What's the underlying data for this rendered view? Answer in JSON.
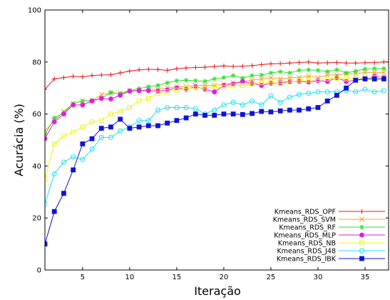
{
  "chart_data": {
    "type": "line",
    "title": "",
    "xlabel": "Iteração",
    "ylabel": "Acurácia (%)",
    "xlim": [
      1,
      37.5
    ],
    "ylim": [
      0,
      100
    ],
    "xticks": [
      5,
      10,
      15,
      20,
      25,
      30,
      35
    ],
    "yticks": [
      0,
      20,
      40,
      60,
      80,
      100
    ],
    "grid": false,
    "legend_position": "bottom-right",
    "x": [
      1,
      2,
      3,
      4,
      5,
      6,
      7,
      8,
      9,
      10,
      11,
      12,
      13,
      14,
      15,
      16,
      17,
      18,
      19,
      20,
      21,
      22,
      23,
      24,
      25,
      26,
      27,
      28,
      29,
      30,
      31,
      32,
      33,
      34,
      35,
      36,
      37
    ],
    "series": [
      {
        "name": "Kmeans_RDS_OPF",
        "color": "#e8171a",
        "marker": "plus",
        "values": [
          69.5,
          73.5,
          74,
          74.5,
          74.3,
          74.8,
          75,
          75.1,
          75.8,
          76.5,
          77,
          77.2,
          77.1,
          76.8,
          77.4,
          77.7,
          77.9,
          78,
          78.3,
          78.5,
          78.3,
          78.4,
          78.6,
          79,
          79.3,
          79.4,
          79.6,
          79.8,
          80,
          79.6,
          79.7,
          79.8,
          79.6,
          79.6,
          79.7,
          79.8,
          80
        ]
      },
      {
        "name": "Kmeans_RDS_SVM",
        "color": "#f7a030",
        "marker": "x",
        "values": [
          53.5,
          57.5,
          61,
          64,
          65,
          65,
          67.5,
          68,
          68,
          69,
          69,
          69.5,
          69.5,
          70,
          70.5,
          70.5,
          71,
          71,
          71,
          71.5,
          72,
          72.5,
          73,
          73.5,
          74,
          73.5,
          74,
          74,
          74.5,
          74,
          75,
          75,
          75.5,
          75.5,
          76,
          76,
          76
        ]
      },
      {
        "name": "Kmeans_RDS_RF",
        "color": "#2ee02e",
        "marker": "asterisk",
        "values": [
          52,
          58.5,
          60.5,
          64,
          65,
          65.2,
          66,
          68.3,
          67.8,
          69,
          69.8,
          70.5,
          71,
          72,
          72.8,
          73,
          72.8,
          72.6,
          73.5,
          74,
          74.8,
          73.8,
          74.8,
          75,
          75.8,
          76.3,
          75.8,
          76.8,
          77,
          76.8,
          76.3,
          77,
          75.8,
          76.5,
          77.3,
          77.5,
          77.5
        ]
      },
      {
        "name": "Kmeans_RDS_MLP",
        "color": "#e817e8",
        "marker": "circle-filled",
        "values": [
          50.5,
          57,
          60,
          63.5,
          63.5,
          65,
          66,
          65.8,
          67.2,
          68.8,
          69,
          69,
          68.8,
          69.2,
          70,
          69.5,
          70.5,
          69.5,
          68.5,
          71,
          71.5,
          72.5,
          71.8,
          71,
          71.8,
          72,
          72.5,
          72.5,
          72.3,
          72.8,
          72.5,
          74,
          72.5,
          73,
          73.5,
          74.5,
          74
        ]
      },
      {
        "name": "Kmeans_RDS_NB",
        "color": "#f0f020",
        "marker": "square-open",
        "values": [
          35,
          48.5,
          51.5,
          53,
          55,
          57,
          57.5,
          60,
          61,
          62.5,
          65,
          66,
          68,
          68.5,
          69.2,
          69.8,
          70,
          70,
          70.5,
          70.3,
          70.8,
          71,
          71.5,
          72,
          72.2,
          71.7,
          72.3,
          72.8,
          73,
          73.2,
          73.5,
          73.7,
          73.5,
          73.8,
          73.9,
          74,
          74.2
        ]
      },
      {
        "name": "Kmeans_RDS_J48",
        "color": "#20e0f0",
        "marker": "circle-open",
        "values": [
          25.5,
          37,
          41.5,
          43.5,
          42.5,
          46.5,
          51,
          51,
          53.5,
          55,
          57.5,
          57.5,
          61.5,
          62.5,
          62.5,
          62.5,
          62,
          60,
          61.5,
          63.5,
          64.5,
          63.5,
          65,
          63.5,
          67,
          64.5,
          66.5,
          67.5,
          68,
          68.5,
          68.5,
          68.5,
          69,
          68.5,
          69.5,
          68.5,
          69
        ]
      },
      {
        "name": "Kmeans_RDS_IBK",
        "color": "#0e14d8",
        "marker": "square-filled",
        "values": [
          10,
          22.5,
          29.5,
          38.5,
          48.5,
          50.5,
          54.5,
          55,
          58,
          54.5,
          55,
          55.5,
          55.5,
          56.5,
          57.5,
          58.5,
          60,
          59.5,
          59.5,
          60,
          60,
          59.8,
          60.2,
          61,
          60.8,
          61.2,
          61.5,
          61.5,
          62,
          62.5,
          65,
          67.2,
          70,
          73,
          73.5,
          73.5,
          73.5
        ]
      }
    ]
  }
}
